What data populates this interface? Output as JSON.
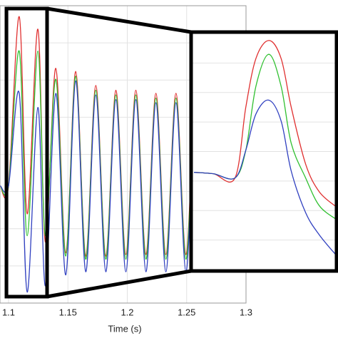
{
  "chart_data": [
    {
      "type": "line",
      "xlabel": "Time (s)",
      "x": [
        1.093,
        1.1,
        1.109,
        1.1157,
        1.1247,
        1.131,
        1.1398,
        1.1482,
        1.1566,
        1.165,
        1.1735,
        1.1819,
        1.1904,
        1.1988,
        1.2072,
        1.2157,
        1.2241,
        1.2325,
        1.241,
        1.2494,
        1.2578,
        1.2663,
        1.2747,
        1.2831,
        1.2916,
        1.3
      ],
      "series": [
        {
          "color": "#e03030",
          "values": [
            0,
            0,
            1.08,
            -0.18,
            1.0,
            -0.36,
            0.75,
            -0.43,
            0.73,
            -0.45,
            0.64,
            -0.45,
            0.61,
            -0.44,
            0.61,
            -0.44,
            0.59,
            -0.44,
            0.59,
            -0.44,
            0.57,
            -0.43,
            0.57,
            -0.43,
            0.55,
            -0.43
          ]
        },
        {
          "color": "#30c030",
          "values": [
            0,
            0,
            0.86,
            -0.32,
            0.86,
            -0.32,
            0.68,
            -0.45,
            0.7,
            -0.47,
            0.61,
            -0.47,
            0.58,
            -0.47,
            0.58,
            -0.47,
            0.56,
            -0.47,
            0.56,
            -0.47,
            0.54,
            -0.47,
            0.54,
            -0.47,
            0.52,
            -0.47
          ]
        },
        {
          "color": "#3040c0",
          "values": [
            0,
            0,
            0.59,
            -0.68,
            0.5,
            -0.64,
            0.59,
            -0.57,
            0.67,
            -0.55,
            0.58,
            -0.55,
            0.55,
            -0.55,
            0.55,
            -0.55,
            0.53,
            -0.55,
            0.53,
            -0.55,
            0.51,
            -0.55,
            0.51,
            -0.55,
            0.49,
            -0.55
          ]
        }
      ],
      "xlim": [
        1.0928,
        1.3
      ],
      "ylim": [
        -0.75,
        1.15
      ],
      "xticks": [
        1.1,
        1.15,
        1.2,
        1.25,
        1.3
      ],
      "grid": true
    },
    {
      "type": "line",
      "x": [
        1.1002,
        1.1029,
        1.1059,
        1.1074,
        1.1088,
        1.1106,
        1.1123,
        1.1137,
        1.1157,
        1.1176,
        1.12
      ],
      "series": [
        {
          "color": "#e03030",
          "values": [
            0.1,
            0.09,
            0.06,
            0.57,
            0.92,
            1.05,
            0.92,
            0.57,
            0.16,
            -0.04,
            -0.15
          ]
        },
        {
          "color": "#30c030",
          "values": [
            0.1,
            0.09,
            0.06,
            0.26,
            0.72,
            0.95,
            0.72,
            0.31,
            0.06,
            -0.14,
            -0.24
          ]
        },
        {
          "color": "#3040c0",
          "values": [
            0.1,
            0.09,
            0.06,
            0.26,
            0.52,
            0.62,
            0.47,
            0.11,
            -0.19,
            -0.35,
            -0.5
          ]
        }
      ],
      "xlim": [
        1.1,
        1.12
      ],
      "ylim": [
        -0.6,
        1.1
      ],
      "grid": true
    }
  ]
}
